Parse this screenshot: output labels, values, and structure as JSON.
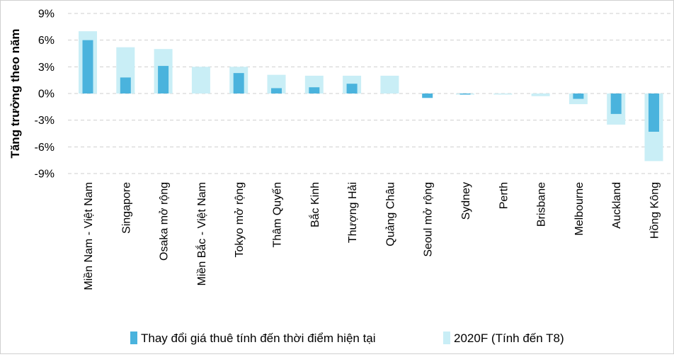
{
  "chart_data": {
    "type": "bar",
    "ylabel": "Tăng trưởng theo năm",
    "ylim": [
      -9,
      9
    ],
    "yticks": [
      9,
      6,
      3,
      0,
      -3,
      -6,
      -9
    ],
    "ytick_labels": [
      "9%",
      "6%",
      "3%",
      "0%",
      "-3%",
      "-6%",
      "-9%"
    ],
    "grid": true,
    "legend_position": "bottom",
    "categories": [
      "Miền Nam - Việt Nam",
      "Singapore",
      "Osaka mở rộng",
      "Miền Bắc - Việt Nam",
      "Tokyo mở rộng",
      "Thâm Quyến",
      "Bắc Kinh",
      "Thượng Hải",
      "Quảng Châu",
      "Seoul mở rộng",
      "Sydney",
      "Perth",
      "Brisbane",
      "Melbourne",
      "Auckland",
      "Hồng Kông"
    ],
    "series": [
      {
        "name": "2020F (Tính đến T8)",
        "color": "#c9eef6",
        "values": [
          7.0,
          5.2,
          5.0,
          3.0,
          3.0,
          2.1,
          2.0,
          2.0,
          2.0,
          0.0,
          -0.1,
          -0.1,
          -0.3,
          -1.2,
          -3.5,
          -7.6
        ]
      },
      {
        "name": "Thay đổi giá thuê tính đến thời điểm hiện tại",
        "color": "#4ab3dd",
        "values": [
          6.0,
          1.8,
          3.1,
          0.0,
          2.3,
          0.6,
          0.7,
          1.1,
          0.0,
          -0.5,
          -0.1,
          0.0,
          0.0,
          -0.6,
          -2.3,
          -4.3
        ]
      }
    ]
  }
}
